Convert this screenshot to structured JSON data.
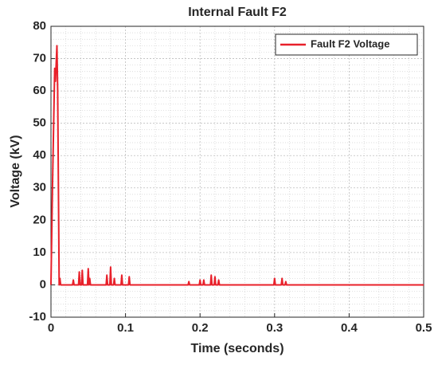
{
  "chart_data": {
    "type": "line",
    "title": "Internal Fault F2",
    "x_label": "Time (seconds)",
    "y_label": "Voltage (kV)",
    "x": [
      0,
      0.002,
      0.005,
      0.006,
      0.008,
      0.009,
      0.011,
      0.012,
      0.013,
      0.029,
      0.03,
      0.031,
      0.037,
      0.038,
      0.039,
      0.041,
      0.042,
      0.043,
      0.049,
      0.05,
      0.051,
      0.052,
      0.053,
      0.074,
      0.075,
      0.076,
      0.079,
      0.08,
      0.081,
      0.084,
      0.085,
      0.086,
      0.094,
      0.095,
      0.096,
      0.104,
      0.105,
      0.106,
      0.184,
      0.185,
      0.186,
      0.199,
      0.2,
      0.201,
      0.204,
      0.205,
      0.206,
      0.214,
      0.215,
      0.216,
      0.219,
      0.22,
      0.221,
      0.224,
      0.225,
      0.226,
      0.299,
      0.3,
      0.301,
      0.309,
      0.31,
      0.311,
      0.314,
      0.315,
      0.316,
      0.5
    ],
    "series": [
      {
        "name": "Fault F2 Voltage",
        "color": "#e8202a",
        "values": [
          0,
          30,
          67,
          63,
          74,
          60,
          0,
          2,
          0,
          0,
          1.5,
          0,
          0,
          4,
          0,
          0,
          4.5,
          0,
          0,
          5,
          0,
          2,
          0,
          0,
          3,
          0,
          0,
          5.5,
          0,
          0,
          2,
          0,
          0,
          3,
          0,
          0,
          2.5,
          0,
          0,
          1,
          0,
          0,
          1.5,
          0,
          0,
          1.5,
          0,
          0,
          3,
          0,
          0,
          2.5,
          0,
          0,
          1.5,
          0,
          0,
          2,
          0,
          0,
          2,
          0,
          0,
          1,
          0,
          0
        ]
      }
    ],
    "xlim": [
      0,
      0.5
    ],
    "xticks": [
      0,
      0.1,
      0.2,
      0.3,
      0.4,
      0.5
    ],
    "ylim": [
      -10,
      80
    ],
    "yticks": [
      -10,
      0,
      10,
      20,
      30,
      40,
      50,
      60,
      70,
      80
    ],
    "grid": true,
    "minor_grid": true,
    "legend": "upper right"
  }
}
